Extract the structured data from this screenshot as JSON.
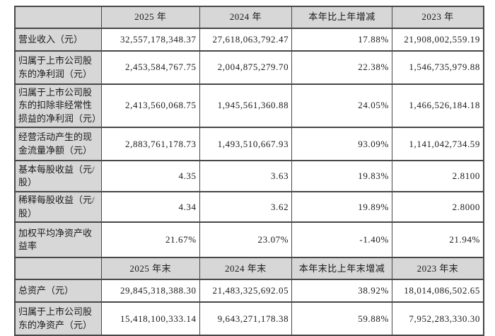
{
  "colors": {
    "header_bg": "#d7d7d7",
    "border": "#474747",
    "text": "#1b1b1b",
    "cell_bg": "#ffffff"
  },
  "period_header": [
    "",
    "2025 年",
    "2024 年",
    "本年比上年增减",
    "2023 年"
  ],
  "rows_period": [
    {
      "label": "营业收入（元）",
      "y2025": "32,557,178,348.37",
      "y2024": "27,618,063,792.47",
      "change": "17.88%",
      "y2023": "21,908,002,559.19"
    },
    {
      "label": "归属于上市公司股东的净利润（元）",
      "y2025": "2,453,584,767.75",
      "y2024": "2,004,875,279.70",
      "change": "22.38%",
      "y2023": "1,546,735,979.88"
    },
    {
      "label": "归属于上市公司股东的扣除非经常性损益的净利润（元）",
      "y2025": "2,413,560,068.75",
      "y2024": "1,945,561,360.88",
      "change": "24.05%",
      "y2023": "1,466,526,184.18"
    },
    {
      "label": "经营活动产生的现金流量净额（元）",
      "y2025": "2,883,761,178.73",
      "y2024": "1,493,510,667.93",
      "change": "93.09%",
      "y2023": "1,141,042,734.59"
    },
    {
      "label": "基本每股收益（元/股）",
      "y2025": "4.35",
      "y2024": "3.63",
      "change": "19.83%",
      "y2023": "2.8100"
    },
    {
      "label": "稀释每股收益（元/股）",
      "y2025": "4.34",
      "y2024": "3.62",
      "change": "19.89%",
      "y2023": "2.8000"
    },
    {
      "label": "加权平均净资产收益率",
      "y2025": "21.67%",
      "y2024": "23.07%",
      "change": "-1.40%",
      "y2023": "21.94%"
    }
  ],
  "eop_header": [
    "",
    "2025 年末",
    "2024 年末",
    "本年末比上年末增减",
    "2023 年末"
  ],
  "rows_eop": [
    {
      "label": "总资产（元）",
      "y2025": "29,845,318,388.30",
      "y2024": "21,483,325,692.05",
      "change": "38.92%",
      "y2023": "18,014,086,502.65"
    },
    {
      "label": "归属于上市公司股东的净资产（元）",
      "y2025": "15,418,100,333.14",
      "y2024": "9,643,271,178.38",
      "change": "59.88%",
      "y2023": "7,952,283,330.30"
    }
  ]
}
